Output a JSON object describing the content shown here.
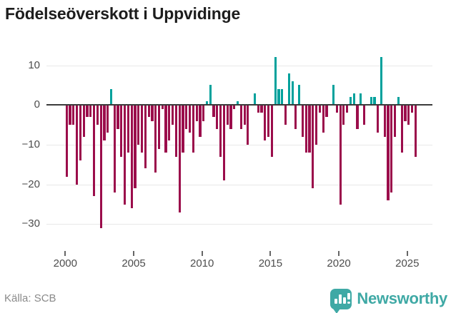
{
  "title": "Födelseöverskott i Uppvidinge",
  "source": "Källa: SCB",
  "logo": {
    "text": "Newsworthy"
  },
  "colors": {
    "positive": "#00A19C",
    "negative": "#9B0D4B",
    "axis": "#3b3b3b",
    "grid": "#e8e8e8",
    "tick_label": "#4d4d4d",
    "source_text": "#8a8a8a",
    "logo": "#3FA9A5"
  },
  "chart_data": {
    "type": "bar",
    "title": "Födelseöverskott i Uppvidinge",
    "frequency": "quarterly",
    "start": "2000-Q1",
    "end": "2025-Q3",
    "ylim": [
      -33,
      13
    ],
    "y_ticks": [
      10,
      0,
      -10,
      -20,
      -30
    ],
    "x_ticks": [
      2000,
      2005,
      2010,
      2015,
      2020,
      2025
    ],
    "grid": true,
    "legend": false,
    "ylabel": "",
    "xlabel": "",
    "values": [
      -18,
      -5,
      -5,
      -20,
      -14,
      -8,
      -3,
      -3,
      -23,
      -5,
      -31,
      -9,
      -7,
      4,
      -22,
      -6,
      -13,
      -25,
      -12,
      -26,
      -21,
      -10,
      -12,
      -16,
      -3,
      -4,
      -17,
      -11,
      -1,
      -12,
      -9,
      -5,
      -13,
      -27,
      -12,
      -6,
      -7,
      -12,
      -4,
      -8,
      -4,
      1,
      5,
      -3,
      -6,
      -13,
      -19,
      -5,
      -6,
      -1,
      1,
      -6,
      -5,
      -10,
      0,
      3,
      -2,
      -2,
      -9,
      -8,
      -13,
      12,
      4,
      4,
      -5,
      8,
      6,
      -6,
      5,
      -8,
      -12,
      -12,
      -21,
      -10,
      -2,
      -7,
      -3,
      0,
      5,
      -2,
      -25,
      -5,
      -2,
      2,
      3,
      -6,
      3,
      -5,
      0,
      2,
      2,
      -7,
      12,
      -8,
      -24,
      -22,
      -8,
      2,
      -12,
      -4,
      -5,
      -2,
      -13
    ]
  }
}
